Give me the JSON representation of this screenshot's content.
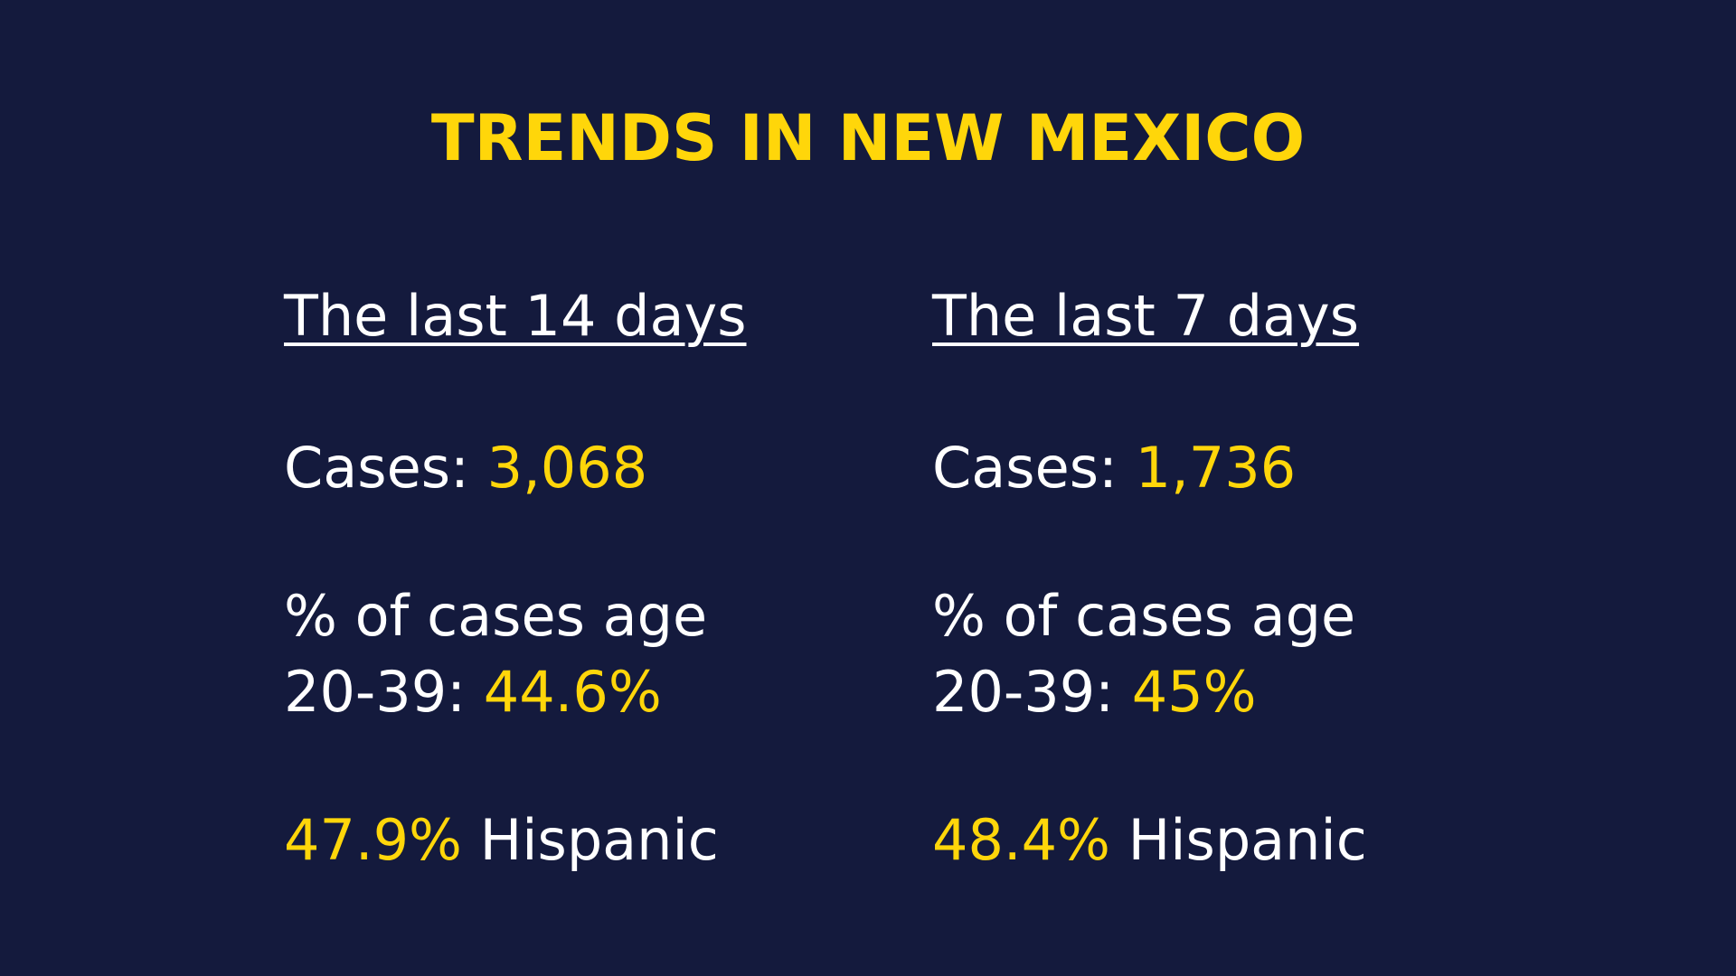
{
  "title": "TRENDS IN NEW MEXICO",
  "accent_color": "#ffd60a",
  "background_color": "#141a3d",
  "columns": [
    {
      "heading": "The last 14 days",
      "cases_label": "Cases: ",
      "cases_value": "3,068",
      "age_line1": "% of cases age",
      "age_label": "20-39: ",
      "age_value": "44.6%",
      "hispanic_value": "47.9%",
      "hispanic_label": " Hispanic"
    },
    {
      "heading": "The last 7 days",
      "cases_label": "Cases: ",
      "cases_value": "1,736",
      "age_line1": "% of cases age",
      "age_label": "20-39: ",
      "age_value": "45%",
      "hispanic_value": "48.4%",
      "hispanic_label": " Hispanic"
    }
  ]
}
